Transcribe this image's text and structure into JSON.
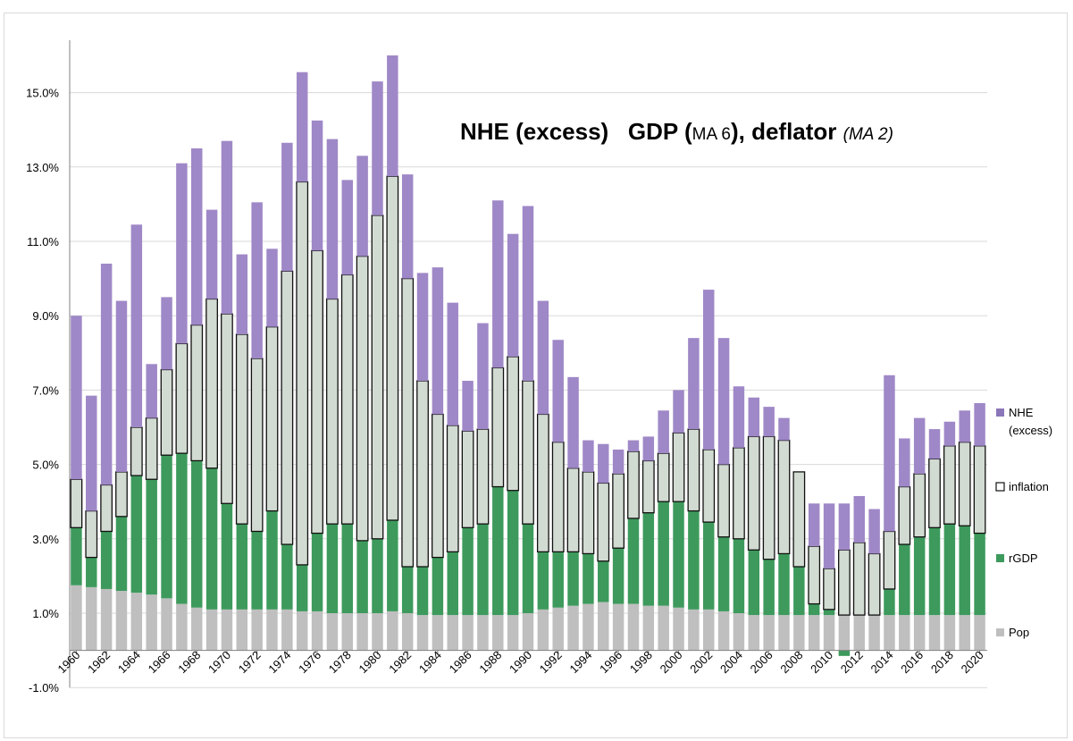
{
  "chart_data": {
    "type": "bar",
    "stacked": true,
    "title_parts": [
      {
        "text": "NHE (excess)   GDP ",
        "style": "main"
      },
      {
        "text": "(",
        "style": "main-normal"
      },
      {
        "text": "MA 6",
        "style": "small"
      },
      {
        "text": ")",
        "style": "main-normal"
      },
      {
        "text": ", deflator ",
        "style": "main"
      },
      {
        "text": "(MA 2)",
        "style": "ital"
      }
    ],
    "xlabel": "",
    "ylabel": "",
    "ylim": [
      -1.0,
      16.0
    ],
    "y_ticks": [
      "15.0%",
      "13.0%",
      "11.0%",
      "9.0%",
      "7.0%",
      "5.0%",
      "3.0%",
      "1.0%",
      "-1.0%"
    ],
    "y_tick_values": [
      15,
      13,
      11,
      9,
      7,
      5,
      3,
      1,
      -1
    ],
    "categories": [
      "1960",
      "1961",
      "1962",
      "1963",
      "1964",
      "1965",
      "1966",
      "1967",
      "1968",
      "1969",
      "1970",
      "1971",
      "1972",
      "1973",
      "1974",
      "1975",
      "1976",
      "1977",
      "1978",
      "1979",
      "1980",
      "1981",
      "1982",
      "1983",
      "1984",
      "1985",
      "1986",
      "1987",
      "1988",
      "1989",
      "1990",
      "1991",
      "1992",
      "1993",
      "1994",
      "1995",
      "1996",
      "1997",
      "1998",
      "1999",
      "2000",
      "2001",
      "2002",
      "2003",
      "2004",
      "2005",
      "2006",
      "2007",
      "2008",
      "2009",
      "2010",
      "2011",
      "2012",
      "2013",
      "2014",
      "2015",
      "2016",
      "2017",
      "2018",
      "2019",
      "2020"
    ],
    "x_tick_labels": [
      "1960",
      "1962",
      "1964",
      "1966",
      "1968",
      "1970",
      "1972",
      "1974",
      "1976",
      "1978",
      "1980",
      "1982",
      "1984",
      "1986",
      "1988",
      "1990",
      "1992",
      "1994",
      "1996",
      "1998",
      "2000",
      "2002",
      "2004",
      "2006",
      "2008",
      "2010",
      "2012",
      "2014",
      "2016",
      "2018",
      "2020"
    ],
    "series": [
      {
        "name": "Pop",
        "color": "#bfbfbf",
        "values": [
          1.75,
          1.7,
          1.65,
          1.6,
          1.55,
          1.5,
          1.4,
          1.25,
          1.15,
          1.1,
          1.1,
          1.1,
          1.1,
          1.1,
          1.1,
          1.05,
          1.05,
          1.0,
          1.0,
          1.0,
          1.0,
          1.05,
          1.0,
          0.95,
          0.95,
          0.95,
          0.95,
          0.95,
          0.95,
          0.95,
          1.0,
          1.1,
          1.15,
          1.2,
          1.25,
          1.3,
          1.25,
          1.25,
          1.2,
          1.2,
          1.15,
          1.1,
          1.1,
          1.05,
          1.0,
          0.95,
          0.95,
          0.95,
          0.95,
          0.95,
          0.95,
          0.95,
          0.95,
          0.95,
          0.95,
          0.95,
          0.95,
          0.95,
          0.95,
          0.95,
          0.95
        ]
      },
      {
        "name": "rGDP",
        "color": "#3d9a5c",
        "values": [
          1.55,
          0.8,
          1.55,
          2.0,
          3.15,
          3.1,
          3.85,
          4.05,
          3.95,
          3.8,
          2.85,
          2.3,
          2.1,
          2.65,
          1.75,
          1.25,
          2.1,
          2.4,
          2.4,
          1.95,
          2.0,
          2.45,
          1.25,
          1.3,
          1.55,
          1.7,
          2.35,
          2.45,
          3.45,
          3.35,
          2.4,
          1.55,
          1.5,
          1.45,
          1.35,
          1.1,
          1.5,
          2.3,
          2.5,
          2.8,
          2.85,
          2.65,
          2.35,
          2.0,
          2.0,
          1.75,
          1.5,
          1.65,
          1.3,
          0.3,
          0.15,
          -0.15,
          0.0,
          0.0,
          0.7,
          1.9,
          2.1,
          2.35,
          2.45,
          2.4,
          2.2
        ]
      },
      {
        "name": "inflation",
        "color": "#d2dbd2",
        "values": [
          1.3,
          1.25,
          1.25,
          1.2,
          1.3,
          1.65,
          2.3,
          2.95,
          3.65,
          4.55,
          5.1,
          5.1,
          4.65,
          4.95,
          7.35,
          10.3,
          7.6,
          6.05,
          6.7,
          7.65,
          8.7,
          9.25,
          7.75,
          5.0,
          3.85,
          3.4,
          2.6,
          2.55,
          3.2,
          3.6,
          3.85,
          3.7,
          2.95,
          2.25,
          2.2,
          2.1,
          2.0,
          1.8,
          1.4,
          1.3,
          1.85,
          2.2,
          1.95,
          1.95,
          2.45,
          3.05,
          3.3,
          3.05,
          2.55,
          1.55,
          1.1,
          1.75,
          1.95,
          1.65,
          1.55,
          1.55,
          1.7,
          1.85,
          2.1,
          2.25,
          2.35
        ]
      },
      {
        "name": "NHE (excess)",
        "color": "#9f88c7",
        "values": [
          4.4,
          3.1,
          5.95,
          4.6,
          5.45,
          1.45,
          1.95,
          4.85,
          4.75,
          2.4,
          4.65,
          2.15,
          4.2,
          2.1,
          3.45,
          2.95,
          3.5,
          4.3,
          2.55,
          2.7,
          3.6,
          3.25,
          2.8,
          2.9,
          3.95,
          3.3,
          1.35,
          2.85,
          4.5,
          3.3,
          4.7,
          3.05,
          2.75,
          2.45,
          0.85,
          1.05,
          0.65,
          0.3,
          0.65,
          1.15,
          1.15,
          2.45,
          4.3,
          3.4,
          1.65,
          1.05,
          0.8,
          0.6,
          0.0,
          1.15,
          1.75,
          1.25,
          1.25,
          1.2,
          4.2,
          1.3,
          1.5,
          0.8,
          0.65,
          0.85,
          1.15
        ]
      }
    ],
    "outlined_series": "inflation",
    "legend_position": "right",
    "grid": true
  },
  "legend": {
    "items": [
      {
        "label_lines": [
          "NHE",
          "(excess)"
        ],
        "color": "#8b76b8",
        "outline": false
      },
      {
        "label_lines": [
          "inflation"
        ],
        "color": "#ffffff",
        "outline": true
      },
      {
        "label_lines": [
          "rGDP"
        ],
        "color": "#3d9a5c",
        "outline": false
      },
      {
        "label_lines": [
          "Pop"
        ],
        "color": "#bfbfbf",
        "outline": false
      }
    ]
  }
}
